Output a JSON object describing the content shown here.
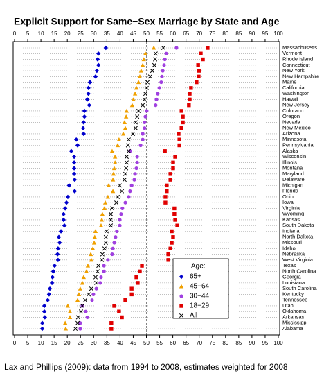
{
  "chart_data": {
    "type": "dot",
    "title": "Explicit Support for Same−Sex Marriage by State and Age",
    "caption": "Lax and Phillips (2009): data from 1994 to 2008, estimates weighted for 2008",
    "categories": [
      "Massachusetts",
      "Vermont",
      "Rhode Island",
      "Connecticut",
      "New York",
      "New Hampshire",
      "Maine",
      "California",
      "Washington",
      "Hawaii",
      "New Jersey",
      "Colorado",
      "Oregon",
      "Nevada",
      "New Mexico",
      "Arizona",
      "Minnesota",
      "Pennsylvania",
      "Alaska",
      "Wisconsin",
      "Illinois",
      "Montana",
      "Maryland",
      "Delaware",
      "Michigan",
      "Florida",
      "Ohio",
      "Iowa",
      "Virginia",
      "Wyoming",
      "Kansas",
      "South Dakota",
      "Indiana",
      "North Dakota",
      "Missouri",
      "Idaho",
      "Nebraska",
      "West Virginia",
      "Texas",
      "North Carolina",
      "Georgia",
      "Louisiana",
      "South Carolina",
      "Kentucky",
      "Tennessee",
      "Utah",
      "Oklahoma",
      "Arkansas",
      "Mississippi",
      "Alabama"
    ],
    "legend_title": "Age:",
    "series": [
      {
        "name": "65+",
        "color": "#0000cc",
        "marker": "diamond",
        "values": [
          34.6,
          31.8,
          31.5,
          31.8,
          31.2,
          30.7,
          28.6,
          28,
          28,
          27.6,
          28.3,
          26.5,
          26.5,
          26.2,
          26,
          26.2,
          23.4,
          23.9,
          21.5,
          22.6,
          22.6,
          22.6,
          22.6,
          22.8,
          20.7,
          22.8,
          20.2,
          19.7,
          19.2,
          18.6,
          18.6,
          18.9,
          17.6,
          16.8,
          17.1,
          16.5,
          16.3,
          16.5,
          15.2,
          14.7,
          14.4,
          14.2,
          13.4,
          13.1,
          12.6,
          11.3,
          11.3,
          11.5,
          10.5,
          10.5
        ]
      },
      {
        "name": "45−64",
        "color": "#f0a000",
        "marker": "triangle",
        "values": [
          52.8,
          49.6,
          49,
          48.6,
          48,
          47.5,
          47,
          46.2,
          45.7,
          45.1,
          44.6,
          42.5,
          42.3,
          41.7,
          42,
          41.2,
          39.6,
          39.1,
          37,
          38.1,
          38.1,
          37.8,
          37.5,
          37.3,
          35.7,
          37.3,
          35.4,
          34.4,
          34.1,
          33.3,
          33.1,
          32.8,
          30.7,
          30.4,
          30.2,
          29.7,
          28.9,
          29.1,
          27.8,
          27.3,
          26.2,
          25.7,
          24.9,
          24.4,
          23.9,
          20.2,
          21,
          21,
          19.2,
          19.4
        ]
      },
      {
        "name": "30−44",
        "color": "#a040e0",
        "marker": "circle",
        "values": [
          61.4,
          57.5,
          57,
          56.7,
          56.2,
          55.9,
          55.6,
          54.9,
          54.3,
          53.8,
          53.5,
          50.1,
          49.6,
          49.3,
          49.3,
          48.6,
          48.6,
          47.8,
          43.8,
          46.5,
          46.5,
          46.2,
          45.7,
          45.4,
          44.4,
          43.8,
          43.3,
          42,
          40.9,
          40.4,
          39.9,
          39.9,
          38.8,
          38.3,
          37.8,
          37.3,
          37,
          35.4,
          33.9,
          33.9,
          32.8,
          32.5,
          31,
          29.9,
          29.4,
          25.7,
          27,
          27.6,
          24.9,
          24.9
        ]
      },
      {
        "name": "18−29",
        "color": "#e00000",
        "marker": "square",
        "values": [
          73.2,
          70.6,
          71.4,
          69.6,
          70,
          69.8,
          69,
          66.9,
          66.4,
          66.4,
          66.1,
          63.3,
          63.8,
          63.8,
          63.3,
          62.2,
          62.5,
          62.5,
          57,
          60.9,
          60.1,
          60.1,
          59.1,
          59.1,
          57.7,
          57.7,
          57.2,
          57.2,
          60.6,
          60.6,
          60.9,
          61.7,
          59.6,
          60.1,
          59.6,
          59.1,
          58.3,
          58.3,
          48.3,
          47.5,
          46.2,
          46.7,
          44.4,
          44.4,
          42,
          37.8,
          39.6,
          40.7,
          36.7,
          36.7
        ]
      },
      {
        "name": "All",
        "color": "#000000",
        "marker": "x",
        "values": [
          56.4,
          53.5,
          53.3,
          53,
          52.2,
          51.4,
          50.4,
          50.1,
          49.6,
          49.3,
          48.6,
          47,
          46.5,
          45.9,
          45.9,
          44.9,
          43.3,
          43,
          43.3,
          42.5,
          42.5,
          42.3,
          42,
          41.7,
          39.9,
          40.7,
          39.1,
          38.6,
          37,
          36.5,
          36.5,
          36.5,
          34.9,
          34.6,
          34.6,
          34.1,
          33.3,
          33.1,
          31.8,
          31.5,
          30.7,
          31,
          29.1,
          28.1,
          26.8,
          25.7,
          25.2,
          24.1,
          23.9,
          23.1
        ]
      }
    ],
    "reference_line": 50,
    "xlim": [
      0,
      100
    ],
    "xticks": [
      0,
      5,
      10,
      15,
      20,
      25,
      30,
      35,
      40,
      45,
      50,
      55,
      60,
      65,
      70,
      75,
      80,
      85,
      90,
      95,
      100
    ],
    "legend_position": "lower right"
  }
}
